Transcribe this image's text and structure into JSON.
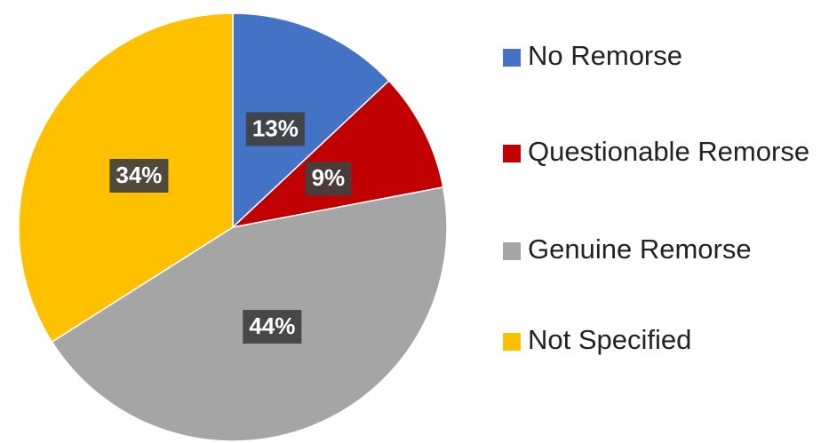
{
  "chart_data": {
    "type": "pie",
    "categories": [
      "No Remorse",
      "Questionable Remorse",
      "Genuine Remorse",
      "Not Specified"
    ],
    "values": [
      13,
      9,
      44,
      34
    ],
    "value_labels": [
      "13%",
      "9%",
      "44%",
      "34%"
    ],
    "colors": [
      "#4472c4",
      "#c00000",
      "#a5a5a5",
      "#ffc000"
    ],
    "legend": "right"
  }
}
